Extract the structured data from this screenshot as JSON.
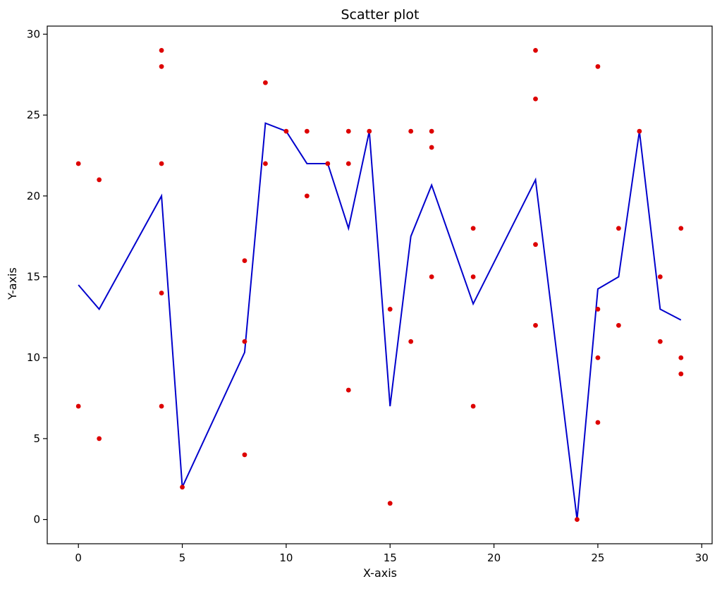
{
  "chart_data": {
    "type": "scatter",
    "title": "Scatter plot",
    "xlabel": "X-axis",
    "ylabel": "Y-axis",
    "xlim": [
      -1.5,
      30.5
    ],
    "ylim": [
      -1.5,
      30.5
    ],
    "xticks": [
      0,
      5,
      10,
      15,
      20,
      25,
      30
    ],
    "yticks": [
      0,
      5,
      10,
      15,
      20,
      25,
      30
    ],
    "grid": false,
    "legend": "none",
    "colors": {
      "points": "#dd0000",
      "line": "#0000cc",
      "frame": "#000000"
    },
    "points": [
      {
        "x": 0,
        "y": 22
      },
      {
        "x": 0,
        "y": 7
      },
      {
        "x": 1,
        "y": 21
      },
      {
        "x": 1,
        "y": 5
      },
      {
        "x": 4,
        "y": 29
      },
      {
        "x": 4,
        "y": 28
      },
      {
        "x": 4,
        "y": 22
      },
      {
        "x": 4,
        "y": 14
      },
      {
        "x": 4,
        "y": 7
      },
      {
        "x": 5,
        "y": 2
      },
      {
        "x": 8,
        "y": 16
      },
      {
        "x": 8,
        "y": 11
      },
      {
        "x": 8,
        "y": 4
      },
      {
        "x": 9,
        "y": 27
      },
      {
        "x": 9,
        "y": 22
      },
      {
        "x": 10,
        "y": 24
      },
      {
        "x": 11,
        "y": 24
      },
      {
        "x": 11,
        "y": 20
      },
      {
        "x": 12,
        "y": 22
      },
      {
        "x": 13,
        "y": 24
      },
      {
        "x": 13,
        "y": 22
      },
      {
        "x": 13,
        "y": 8
      },
      {
        "x": 14,
        "y": 24
      },
      {
        "x": 15,
        "y": 13
      },
      {
        "x": 15,
        "y": 1
      },
      {
        "x": 16,
        "y": 24
      },
      {
        "x": 16,
        "y": 11
      },
      {
        "x": 17,
        "y": 24
      },
      {
        "x": 17,
        "y": 23
      },
      {
        "x": 17,
        "y": 15
      },
      {
        "x": 19,
        "y": 18
      },
      {
        "x": 19,
        "y": 15
      },
      {
        "x": 19,
        "y": 7
      },
      {
        "x": 22,
        "y": 29
      },
      {
        "x": 22,
        "y": 26
      },
      {
        "x": 22,
        "y": 17
      },
      {
        "x": 22,
        "y": 12
      },
      {
        "x": 24,
        "y": 0
      },
      {
        "x": 25,
        "y": 28
      },
      {
        "x": 25,
        "y": 13
      },
      {
        "x": 25,
        "y": 10
      },
      {
        "x": 25,
        "y": 6
      },
      {
        "x": 26,
        "y": 18
      },
      {
        "x": 26,
        "y": 12
      },
      {
        "x": 27,
        "y": 24
      },
      {
        "x": 28,
        "y": 15
      },
      {
        "x": 28,
        "y": 11
      },
      {
        "x": 29,
        "y": 18
      },
      {
        "x": 29,
        "y": 10
      },
      {
        "x": 29,
        "y": 9
      }
    ],
    "line": {
      "x": [
        0,
        1,
        4,
        5,
        8,
        9,
        10,
        11,
        12,
        13,
        14,
        15,
        16,
        17,
        19,
        22,
        24,
        25,
        26,
        27,
        28,
        29
      ],
      "y": [
        14.5,
        13,
        20,
        2,
        10.33,
        24.5,
        24,
        22,
        22,
        18,
        24,
        7,
        17.5,
        20.67,
        13.33,
        21,
        0,
        14.25,
        15,
        24,
        13,
        12.33
      ]
    }
  }
}
